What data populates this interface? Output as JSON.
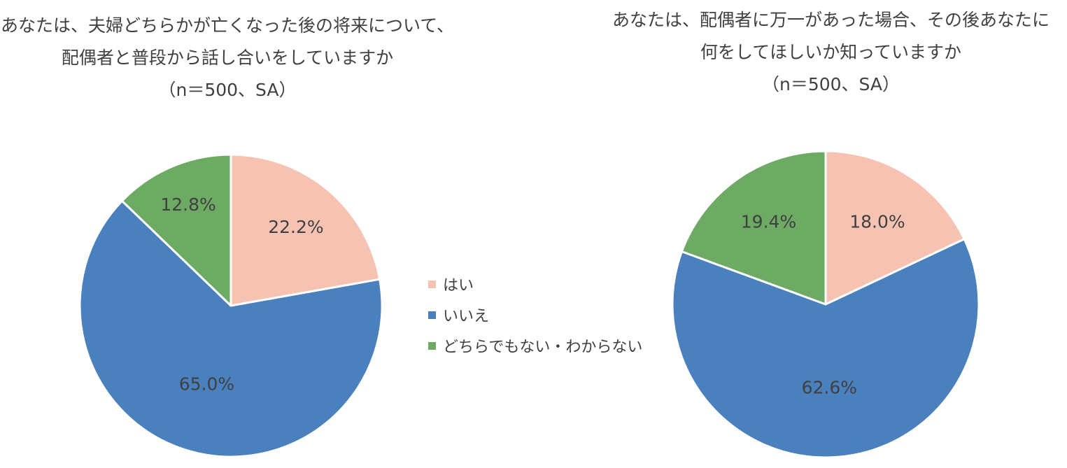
{
  "chart_data": [
    {
      "type": "pie",
      "title_lines": [
        "あなたは、夫婦どちらかが亡くなった後の将来について、",
        "配偶者と普段から話し合いをしていますか",
        "（n＝500、SA）"
      ],
      "categories": [
        "はい",
        "いいえ",
        "どちらでもない・わからない"
      ],
      "values": [
        22.2,
        65.0,
        12.8
      ],
      "labels": [
        "22.2%",
        "65.0%",
        "12.8%"
      ],
      "colors": [
        "#F6C3B3",
        "#4A80BD",
        "#6DAA63"
      ],
      "legend_position": "center"
    },
    {
      "type": "pie",
      "title_lines": [
        "あなたは、配偶者に万一があった場合、その後あなたに",
        "何をしてほしいか知っていますか",
        "（n＝500、SA）"
      ],
      "categories": [
        "はい",
        "いいえ",
        "どちらでもない・わからない"
      ],
      "values": [
        18.0,
        62.6,
        19.4
      ],
      "labels": [
        "18.0%",
        "62.6%",
        "19.4%"
      ],
      "colors": [
        "#F6C3B3",
        "#4A80BD",
        "#6DAA63"
      ]
    }
  ],
  "legend": {
    "items": [
      {
        "label": "はい",
        "color": "#F6C3B3"
      },
      {
        "label": "いいえ",
        "color": "#4A80BD"
      },
      {
        "label": "どちらでもない・わからない",
        "color": "#6DAA63"
      }
    ]
  }
}
